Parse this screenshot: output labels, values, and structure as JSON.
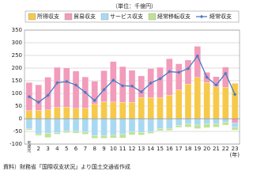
{
  "chart_data": {
    "type": "bar",
    "subtitle": "（単位：千億円）",
    "categories": [
      "平成元",
      "2",
      "3",
      "4",
      "5",
      "6",
      "7",
      "8",
      "9",
      "10",
      "11",
      "12",
      "13",
      "14",
      "15",
      "16",
      "17",
      "18",
      "19",
      "20",
      "21",
      "22",
      "23"
    ],
    "x_unit": "(年)",
    "series": [
      {
        "name": "所得収支",
        "color": "#f6c94a",
        "values": [
          32,
          33,
          35,
          45,
          46,
          41,
          42,
          58,
          67,
          66,
          65,
          65,
          84,
          83,
          83,
          93,
          114,
          137,
          163,
          143,
          126,
          124,
          140
        ]
      },
      {
        "name": "貿易収支",
        "color": "#f29bbb",
        "values": [
          111,
          101,
          129,
          158,
          155,
          147,
          123,
          90,
          123,
          160,
          141,
          126,
          85,
          115,
          120,
          144,
          103,
          95,
          123,
          40,
          40,
          80,
          -16
        ]
      },
      {
        "name": "サービス収支",
        "color": "#a9d9f2",
        "values": [
          -40,
          -60,
          -57,
          -56,
          -49,
          -50,
          -53,
          -67,
          -66,
          -65,
          -62,
          -52,
          -54,
          -52,
          -39,
          -38,
          -26,
          -21,
          -25,
          -21,
          -20,
          -14,
          -18
        ]
      },
      {
        "name": "経常移転収支",
        "color": "#bfe394",
        "values": [
          -4,
          -6,
          -17,
          -5,
          -6,
          -7,
          -8,
          -10,
          -11,
          -11,
          -14,
          -11,
          -10,
          -6,
          -8,
          -8,
          -8,
          -12,
          -14,
          -14,
          -13,
          -11,
          -11
        ]
      },
      {
        "name": "経常収支",
        "color": "#4a7cc4",
        "type": "line",
        "values": [
          87,
          65,
          92,
          142,
          147,
          133,
          104,
          72,
          115,
          152,
          130,
          129,
          106,
          141,
          158,
          186,
          183,
          198,
          248,
          164,
          133,
          179,
          96
        ]
      }
    ],
    "ylim": [
      -100,
      350
    ],
    "yticks": [
      -100,
      -50,
      0,
      50,
      100,
      150,
      200,
      250,
      300,
      350
    ],
    "grid": true,
    "source": "資料）財務省「国際収支状況」より国土交通省作成"
  }
}
